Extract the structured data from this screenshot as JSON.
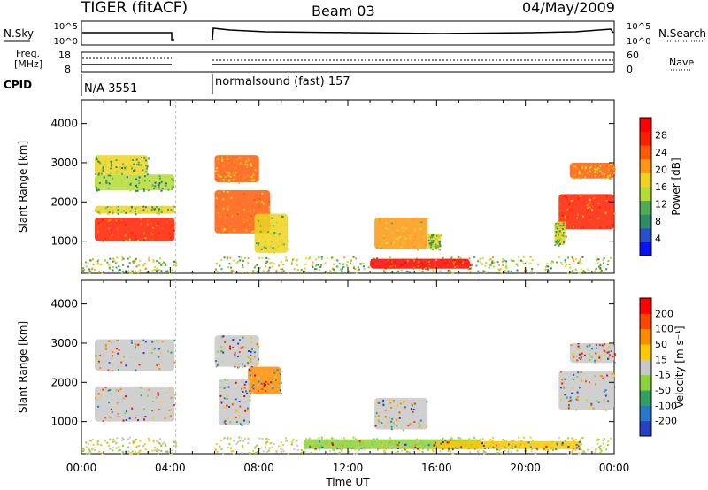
{
  "header": {
    "title": "TIGER (fitACF)",
    "beam": "Beam 03",
    "date": "04/May/2009"
  },
  "status_panels": {
    "nsky_label": "N.Sky",
    "nsearch_label": "N.Search",
    "nsky_ticks": [
      "10^5",
      "10^0"
    ],
    "nsearch_ticks": [
      "10^5",
      "10^0"
    ],
    "freq_label_line1": "Freq.",
    "freq_label_line2": "[MHz]",
    "freq_ticks": [
      "18",
      "8"
    ],
    "nave_label": "Nave",
    "nave_ticks": [
      "60",
      "0"
    ],
    "cpid_label": "CPID",
    "cpid_segments": [
      {
        "text": "N/A 3551",
        "start_ut": 0,
        "end_ut": 4.25
      },
      {
        "text": "normalsound (fast) 157",
        "start_ut": 6.0,
        "end_ut": 24
      }
    ]
  },
  "chart_data": [
    {
      "type": "heatmap",
      "panel": "power",
      "ylabel": "Slant Range [km]",
      "xlabel": "Time UT",
      "x_ticks": [
        "00:00",
        "04:00",
        "08:00",
        "12:00",
        "16:00",
        "20:00",
        "00:00"
      ],
      "y_ticks": [
        1000,
        2000,
        3000,
        4000
      ],
      "xlim_ut": [
        0,
        24
      ],
      "ylim_km": [
        180,
        4600
      ],
      "colorbar_label": "Power [dB]",
      "colorbar_ticks": [
        "28",
        "24",
        "20",
        "16",
        "12",
        "8",
        "4"
      ],
      "colorbar_colors": [
        "#0a14f0",
        "#2850c8",
        "#2d8c64",
        "#50aa55",
        "#b4dc32",
        "#f0d21e",
        "#ff9614",
        "#ff5a0a",
        "#ff1e00",
        "#ff0000"
      ],
      "data_gap_ut": [
        4.25,
        6.0
      ],
      "regions": [
        {
          "t0": 0.6,
          "t1": 4.2,
          "r0": 1000,
          "r1": 1600,
          "level": 0.92
        },
        {
          "t0": 0.6,
          "t1": 4.2,
          "r0": 1700,
          "r1": 1900,
          "level": 0.55
        },
        {
          "t0": 0.6,
          "t1": 4.2,
          "r0": 2300,
          "r1": 2700,
          "level": 0.45
        },
        {
          "t0": 0.6,
          "t1": 3.0,
          "r0": 2700,
          "r1": 3200,
          "level": 0.5
        },
        {
          "t0": 6.0,
          "t1": 8.5,
          "r0": 1200,
          "r1": 2300,
          "level": 0.8
        },
        {
          "t0": 6.0,
          "t1": 8.0,
          "r0": 2500,
          "r1": 3200,
          "level": 0.75
        },
        {
          "t0": 7.8,
          "t1": 9.3,
          "r0": 700,
          "r1": 1700,
          "level": 0.6
        },
        {
          "t0": 13.2,
          "t1": 15.6,
          "r0": 800,
          "r1": 1600,
          "level": 0.72
        },
        {
          "t0": 15.6,
          "t1": 16.2,
          "r0": 800,
          "r1": 1200,
          "level": 0.55
        },
        {
          "t0": 13.0,
          "t1": 17.5,
          "r0": 300,
          "r1": 550,
          "level": 0.95
        },
        {
          "t0": 21.5,
          "t1": 24.0,
          "r0": 1300,
          "r1": 2200,
          "level": 0.9
        },
        {
          "t0": 22.0,
          "t1": 24.0,
          "r0": 2600,
          "r1": 3000,
          "level": 0.75
        },
        {
          "t0": 21.3,
          "t1": 21.8,
          "r0": 900,
          "r1": 1500,
          "level": 0.55
        }
      ]
    },
    {
      "type": "heatmap",
      "panel": "velocity",
      "ylabel": "Slant Range [km]",
      "xlabel": "Time UT",
      "x_ticks": [
        "00:00",
        "04:00",
        "08:00",
        "12:00",
        "16:00",
        "20:00",
        "00:00"
      ],
      "y_ticks": [
        1000,
        2000,
        3000,
        4000
      ],
      "xlim_ut": [
        0,
        24
      ],
      "ylim_km": [
        180,
        4600
      ],
      "colorbar_label": "Velocity [m s⁻¹]",
      "colorbar_ticks": [
        "200",
        "100",
        "50",
        "15",
        "-15",
        "-50",
        "-100",
        "-200"
      ],
      "colorbar_colors": [
        "#2840c8",
        "#2878c8",
        "#32a064",
        "#8cd23c",
        "#c8c8c8",
        "#ffc800",
        "#ff8c00",
        "#ff4600",
        "#ff0000"
      ],
      "data_gap_ut": [
        4.25,
        6.0
      ],
      "regions": [
        {
          "t0": 0.6,
          "t1": 4.2,
          "r0": 1000,
          "r1": 1900,
          "color": "#c8c8c8"
        },
        {
          "t0": 0.6,
          "t1": 4.2,
          "r0": 2300,
          "r1": 3100,
          "color": "#c8c8c8"
        },
        {
          "t0": 6.0,
          "t1": 8.0,
          "r0": 2400,
          "r1": 3200,
          "color": "#c8c8c8"
        },
        {
          "t0": 7.5,
          "t1": 9.0,
          "r0": 1700,
          "r1": 2400,
          "color": "#ff8c00"
        },
        {
          "t0": 6.2,
          "t1": 7.6,
          "r0": 900,
          "r1": 2100,
          "color": "#c8c8c8"
        },
        {
          "t0": 13.2,
          "t1": 15.6,
          "r0": 800,
          "r1": 1600,
          "color": "#c8c8c8"
        },
        {
          "t0": 10.0,
          "t1": 18.0,
          "r0": 300,
          "r1": 550,
          "color": "#8cd23c"
        },
        {
          "t0": 16.0,
          "t1": 22.5,
          "r0": 300,
          "r1": 500,
          "color": "#ffc800"
        },
        {
          "t0": 21.5,
          "t1": 24.0,
          "r0": 1300,
          "r1": 2300,
          "color": "#c8c8c8"
        },
        {
          "t0": 22.0,
          "t1": 24.0,
          "r0": 2500,
          "r1": 3000,
          "color": "#c8c8c8"
        }
      ]
    }
  ]
}
